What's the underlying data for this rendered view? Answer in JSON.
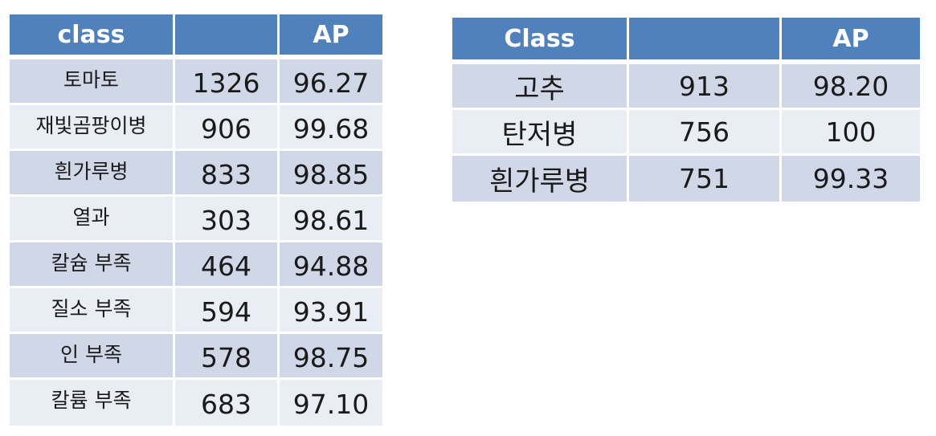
{
  "left_table": {
    "headers": [
      "class",
      "",
      "AP"
    ],
    "rows": [
      [
        "토마토",
        "1326",
        "96.27"
      ],
      [
        "재빛곰팡이병",
        "906",
        "99.68"
      ],
      [
        "흰가루병",
        "833",
        "98.85"
      ],
      [
        "열과",
        "303",
        "98.61"
      ],
      [
        "칼슘 부족",
        "464",
        "94.88"
      ],
      [
        "질소 부족",
        "594",
        "93.91"
      ],
      [
        "인 부족",
        "578",
        "98.75"
      ],
      [
        "칼륨 부족",
        "683",
        "97.10"
      ]
    ]
  },
  "right_table": {
    "headers": [
      "Class",
      "",
      "AP"
    ],
    "rows": [
      [
        "고추",
        "913",
        "98.20"
      ],
      [
        "탄저병",
        "756",
        "100"
      ],
      [
        "흰가루병",
        "751",
        "99.33"
      ]
    ]
  },
  "colors": {
    "header_bg": "#4f81bd",
    "row_dark": "#d0d8e8",
    "row_light": "#e9edf4"
  }
}
